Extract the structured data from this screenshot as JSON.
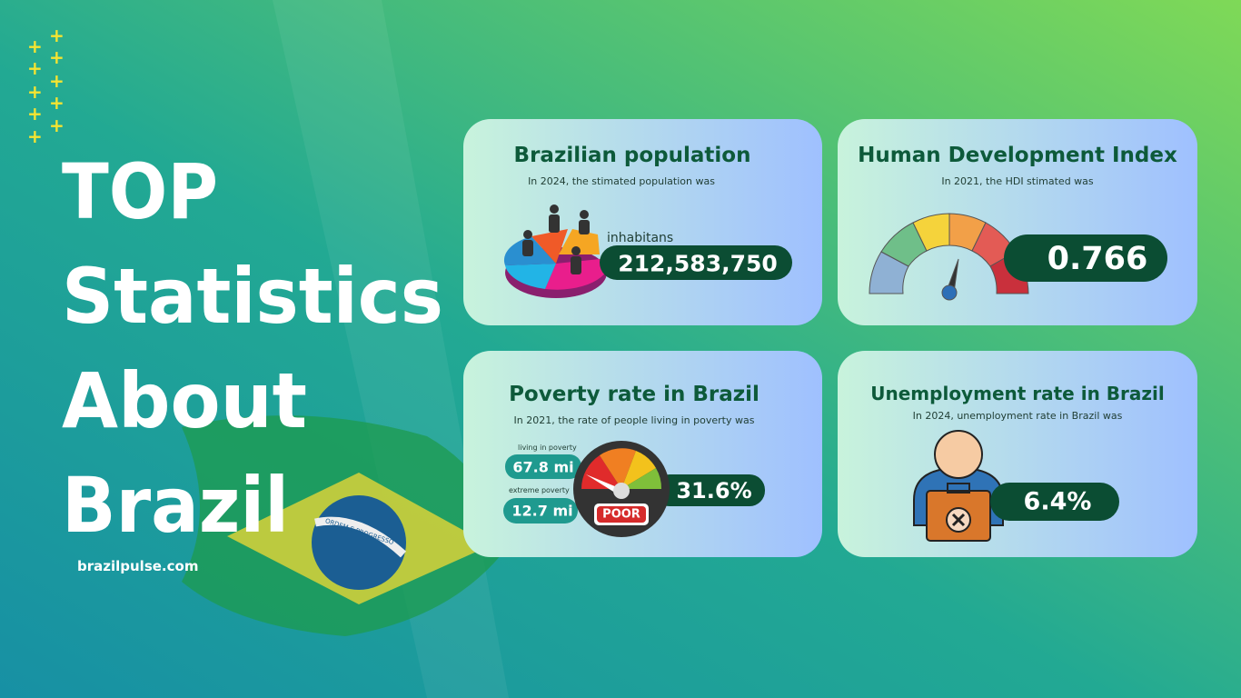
{
  "header": {
    "title": [
      "TOP",
      "Statistics",
      "About",
      "Brazil"
    ],
    "site": "brazilpulse.com",
    "flag_motto": "ORDEM E PROGRESSO"
  },
  "cards": [
    {
      "title": "Brazilian population",
      "subtitle": "In 2024, the stimated population was",
      "unit": "inhabitans",
      "value": "212,583,750"
    },
    {
      "title": "Human Development Index",
      "subtitle": "In 2021, the HDI stimated was",
      "value": "0.766"
    },
    {
      "title": "Poverty rate in Brazil",
      "subtitle": "In 2021, the rate of people living in poverty was",
      "value": "31.6%",
      "details": [
        {
          "label": "living in poverty",
          "value": "67.8 mi"
        },
        {
          "label": "extreme poverty",
          "value": "12.7 mi"
        }
      ],
      "meter_label": "POOR"
    },
    {
      "title": "Unemployment rate in Brazil",
      "subtitle": "In 2024, unemployment rate in Brazil was",
      "value": "6.4%"
    }
  ]
}
